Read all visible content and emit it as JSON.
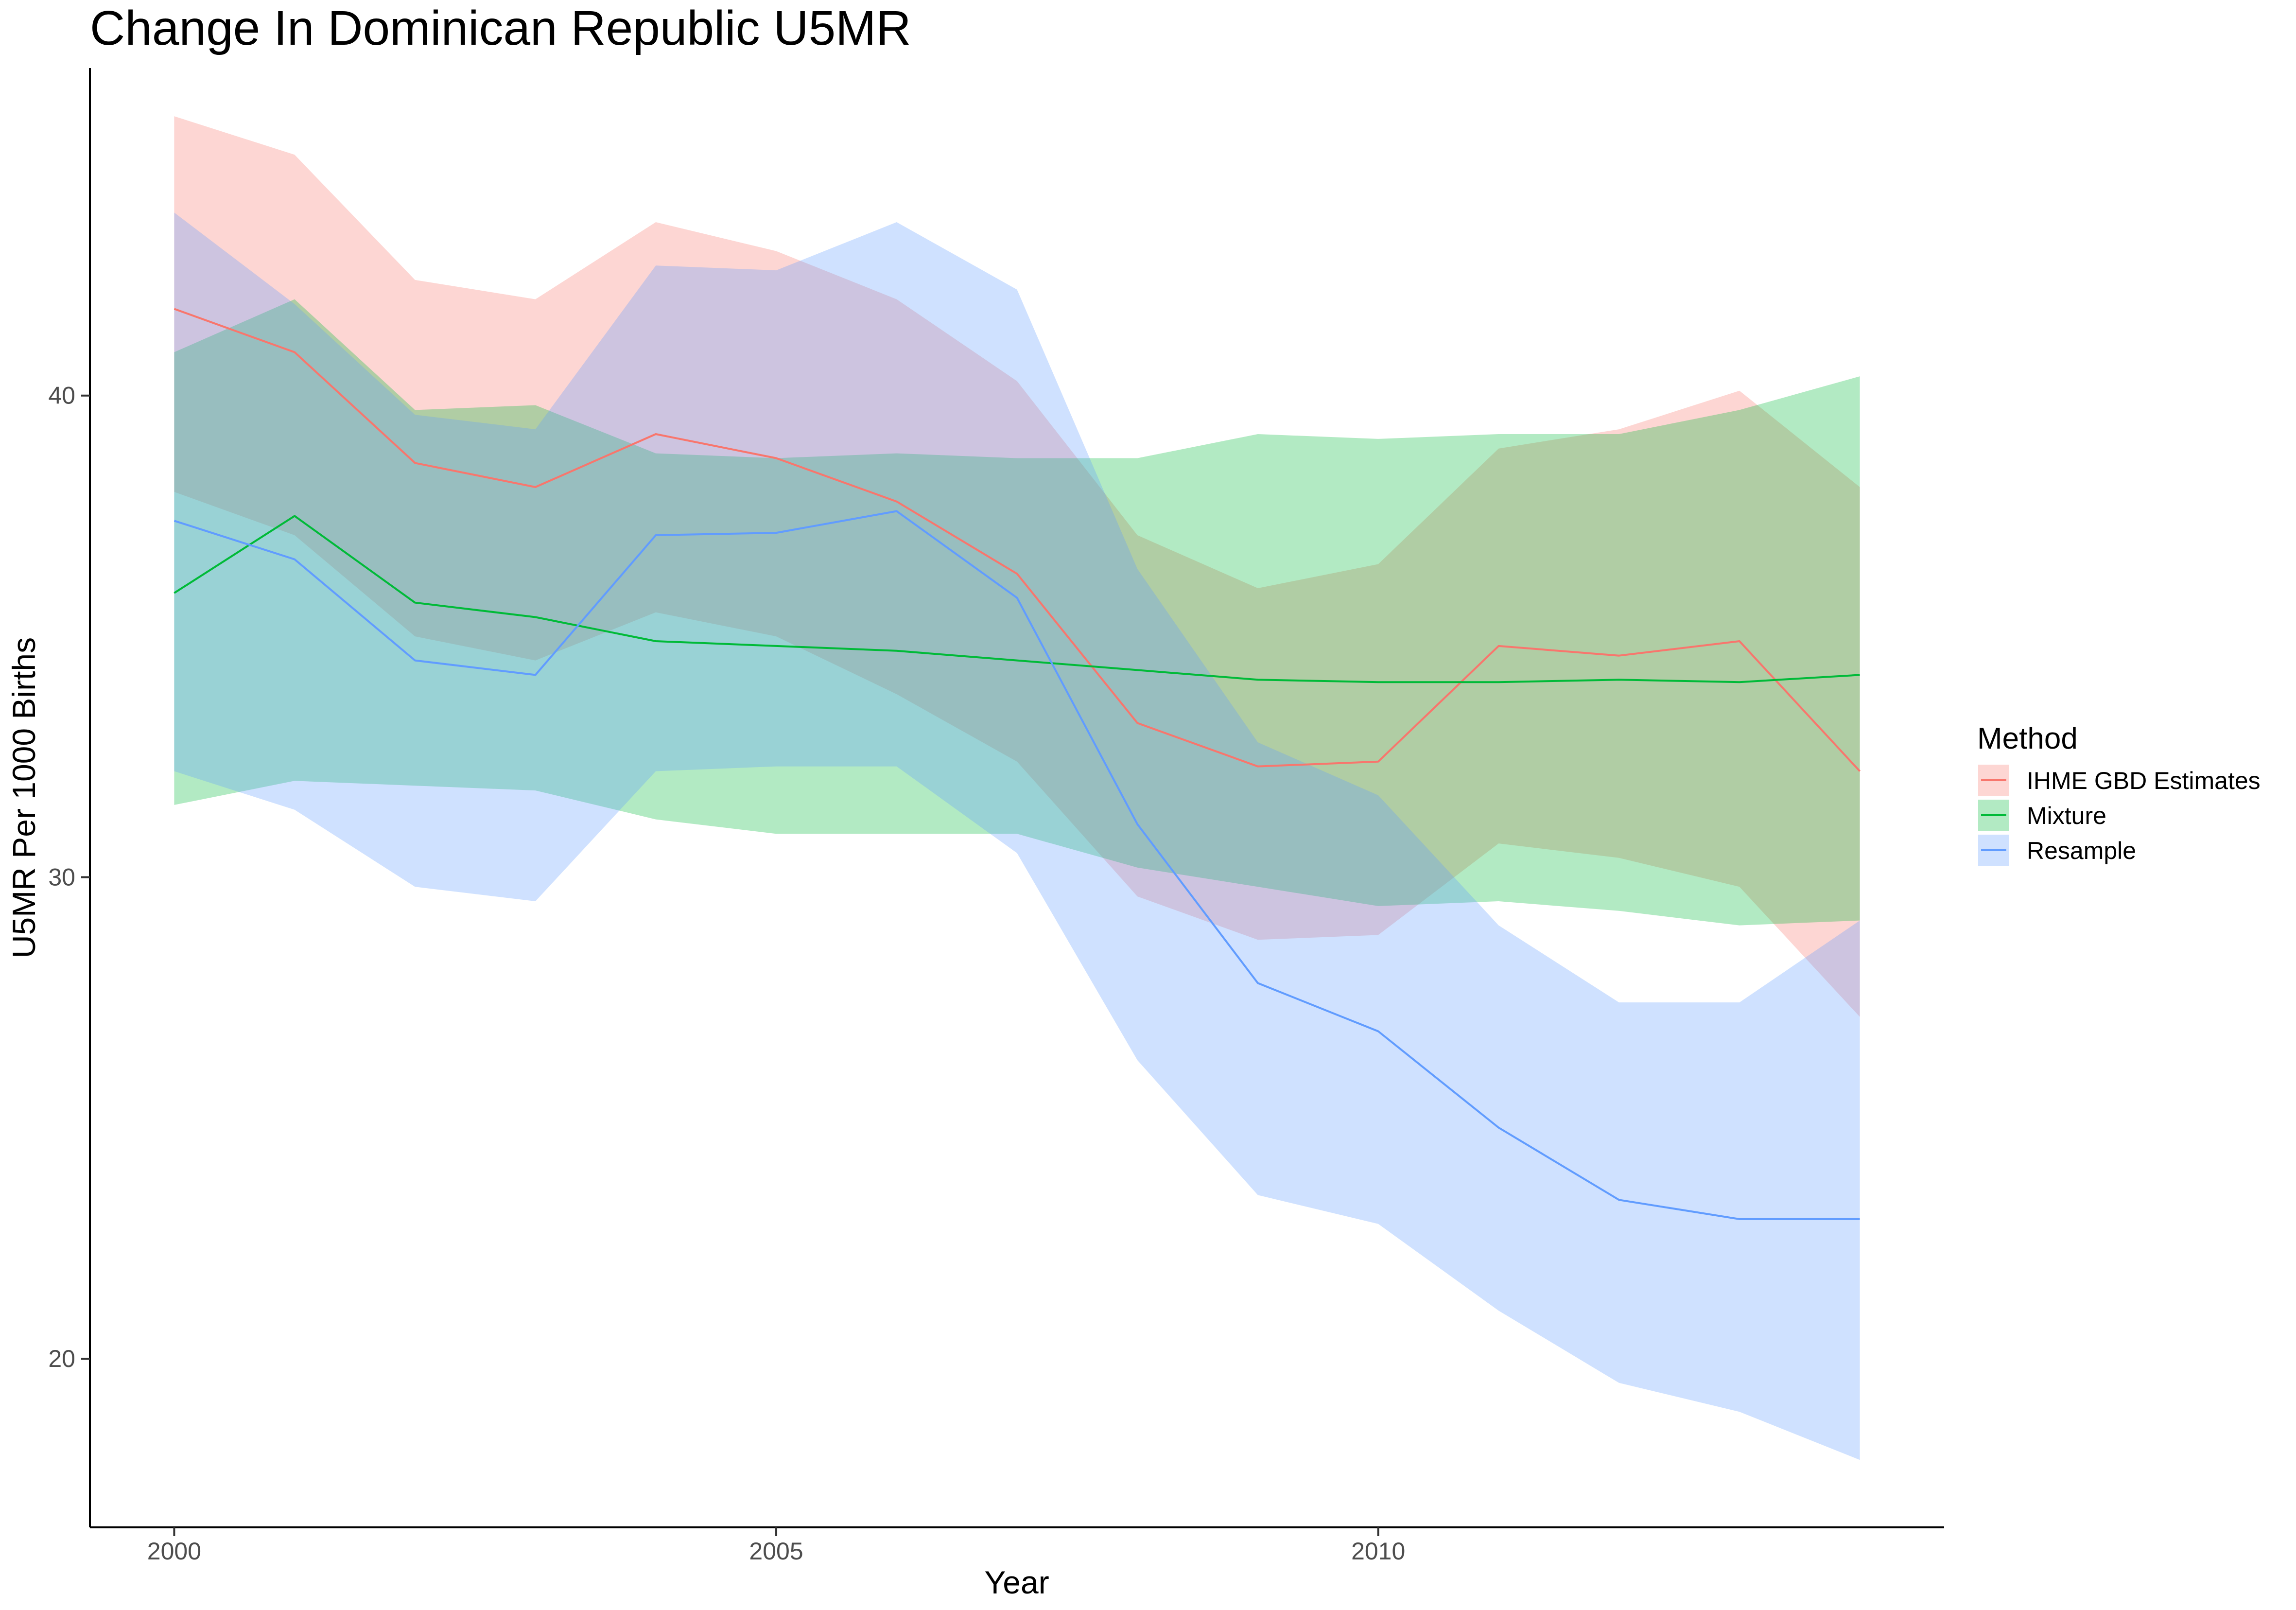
{
  "chart_data": {
    "type": "line",
    "title": "Change In Dominican Republic U5MR",
    "xlabel": "Year",
    "ylabel": "U5MR Per 1000 Births",
    "xlim": [
      1999.3,
      2014.7
    ],
    "ylim": [
      16.5,
      46.8
    ],
    "x_ticks": [
      2000,
      2005,
      2010
    ],
    "y_ticks": [
      20,
      30,
      40
    ],
    "grid": false,
    "legend": {
      "title": "Method",
      "position": "right"
    },
    "x": [
      2000,
      2001,
      2002,
      2003,
      2004,
      2005,
      2006,
      2007,
      2008,
      2009,
      2010,
      2011,
      2012,
      2013,
      2014
    ],
    "series": [
      {
        "name": "IHME GBD Estimates",
        "color": "#F8766D",
        "values": [
          41.8,
          40.9,
          38.6,
          38.1,
          39.2,
          38.7,
          37.8,
          36.3,
          33.2,
          32.3,
          32.4,
          34.8,
          34.6,
          34.9,
          32.2
        ],
        "lower": [
          38.0,
          37.1,
          35.0,
          34.5,
          35.5,
          35.0,
          33.8,
          32.4,
          29.6,
          28.7,
          28.8,
          30.7,
          30.4,
          29.8,
          27.1
        ],
        "upper": [
          45.8,
          45.0,
          42.4,
          42.0,
          43.6,
          43.0,
          42.0,
          40.3,
          37.1,
          36.0,
          36.5,
          38.9,
          39.3,
          40.1,
          38.1
        ]
      },
      {
        "name": "Mixture",
        "color": "#00BA38",
        "values": [
          35.9,
          37.5,
          35.7,
          35.4,
          34.9,
          34.8,
          34.7,
          34.5,
          34.3,
          34.1,
          34.05,
          34.05,
          34.1,
          34.05,
          34.2
        ],
        "lower": [
          31.5,
          32.0,
          31.9,
          31.8,
          31.2,
          30.9,
          30.9,
          30.9,
          30.2,
          29.8,
          29.4,
          29.5,
          29.3,
          29.0,
          29.1
        ],
        "upper": [
          40.9,
          42.0,
          39.7,
          39.8,
          38.8,
          38.7,
          38.8,
          38.7,
          38.7,
          39.2,
          39.1,
          39.2,
          39.2,
          39.7,
          40.4
        ]
      },
      {
        "name": "Resample",
        "color": "#619CFF",
        "values": [
          37.4,
          36.6,
          34.5,
          34.2,
          37.1,
          37.15,
          37.6,
          35.8,
          31.1,
          27.8,
          26.8,
          24.8,
          23.3,
          22.9,
          22.9
        ],
        "lower": [
          32.2,
          31.4,
          29.8,
          29.5,
          32.2,
          32.3,
          32.3,
          30.5,
          26.2,
          23.4,
          22.8,
          21.0,
          19.5,
          18.9,
          17.9
        ],
        "upper": [
          43.8,
          41.9,
          39.6,
          39.3,
          42.7,
          42.6,
          43.6,
          42.2,
          36.4,
          32.8,
          31.7,
          29.0,
          27.4,
          27.4,
          29.1
        ]
      }
    ]
  }
}
